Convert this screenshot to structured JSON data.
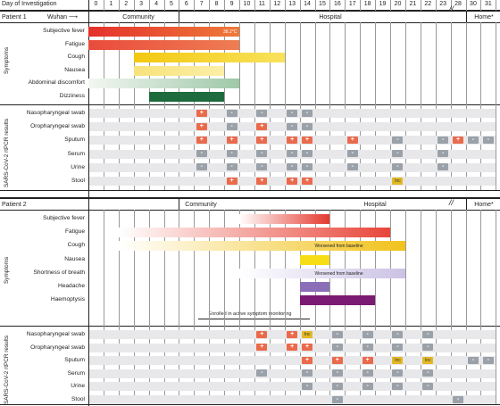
{
  "header": {
    "title": "Day of Investigation",
    "days": [
      "0",
      "1",
      "2",
      "3",
      "4",
      "5",
      "6",
      "7",
      "8",
      "9",
      "10",
      "11",
      "12",
      "13",
      "14",
      "15",
      "16",
      "17",
      "18",
      "19",
      "20",
      "21",
      "22",
      "23",
      "28",
      "30",
      "31"
    ]
  },
  "patient1": {
    "label": "Patient 1",
    "location_origin": "Wuhan",
    "phases": {
      "community": "Community",
      "hospital": "Hospital",
      "home": "Home*"
    },
    "symptoms_label": "Symptoms",
    "symptoms": [
      {
        "name": "Subjective fever",
        "start": 0,
        "end": 10,
        "gradient": [
          "#e4312b",
          "#ee7a3a"
        ],
        "annotation": "38.2°C"
      },
      {
        "name": "Fatigue",
        "start": 0,
        "end": 10,
        "gradient": [
          "#e94b3c",
          "#ef7d52"
        ]
      },
      {
        "name": "Cough",
        "start": 3,
        "end": 13,
        "gradient": [
          "#f3c810",
          "#f8e25c"
        ]
      },
      {
        "name": "Nausea",
        "start": 3,
        "end": 9,
        "gradient": [
          "#f7e27a",
          "#fbefa8"
        ]
      },
      {
        "name": "Abdominal discomfort",
        "start": 0,
        "end": 10,
        "gradient": [
          "#f2f7f2",
          "#9fc8a8"
        ]
      },
      {
        "name": "Dizziness",
        "start": 4,
        "end": 9,
        "gradient": [
          "#1e6b3d",
          "#1e6b3d"
        ]
      }
    ],
    "results_label": "SARS-CoV-2 rtPCR results",
    "tests": [
      {
        "name": "Nasopharyngeal swab",
        "results": [
          [
            7,
            "+"
          ],
          [
            9,
            "-"
          ],
          [
            11,
            "-"
          ],
          [
            13,
            "-"
          ],
          [
            14,
            "-"
          ]
        ]
      },
      {
        "name": "Oropharyngeal swab",
        "results": [
          [
            7,
            "+"
          ],
          [
            9,
            "-"
          ],
          [
            11,
            "+"
          ],
          [
            13,
            "-"
          ],
          [
            14,
            "-"
          ]
        ]
      },
      {
        "name": "Sputum",
        "results": [
          [
            7,
            "+"
          ],
          [
            9,
            "+"
          ],
          [
            11,
            "+"
          ],
          [
            13,
            "+"
          ],
          [
            14,
            "+"
          ],
          [
            17,
            "+"
          ],
          [
            20,
            "-"
          ],
          [
            23,
            "-"
          ],
          [
            24,
            "+"
          ],
          [
            25,
            "-"
          ],
          [
            26,
            "-"
          ]
        ]
      },
      {
        "name": "Serum",
        "results": [
          [
            7,
            "-"
          ],
          [
            9,
            "-"
          ],
          [
            11,
            "-"
          ],
          [
            13,
            "-"
          ],
          [
            14,
            "-"
          ],
          [
            17,
            "-"
          ],
          [
            20,
            "-"
          ],
          [
            23,
            "-"
          ]
        ]
      },
      {
        "name": "Urine",
        "results": [
          [
            7,
            "-"
          ],
          [
            9,
            "-"
          ],
          [
            11,
            "-"
          ],
          [
            13,
            "-"
          ],
          [
            14,
            "-"
          ],
          [
            17,
            "-"
          ],
          [
            20,
            "-"
          ],
          [
            23,
            "-"
          ]
        ]
      },
      {
        "name": "Stool",
        "results": [
          [
            9,
            "+"
          ],
          [
            11,
            "+"
          ],
          [
            13,
            "+"
          ],
          [
            14,
            "+"
          ],
          [
            20,
            "inc"
          ]
        ]
      }
    ]
  },
  "patient2": {
    "label": "Patient 2",
    "phases": {
      "community": "Community",
      "hospital": "Hospital",
      "home": "Home*"
    },
    "symptoms_label": "Symptoms",
    "symptoms": [
      {
        "name": "Subjective fever",
        "start": 10,
        "end": 16,
        "gradient": [
          "#ffffff",
          "#e43a2e"
        ]
      },
      {
        "name": "Fatigue",
        "start": 2,
        "end": 20,
        "gradient": [
          "#ffffff",
          "#e8463a"
        ]
      },
      {
        "name": "Cough",
        "start": 2,
        "end": 21,
        "gradient": [
          "#ffffff",
          "#f1c21a"
        ],
        "annotation": "Worsened from baseline",
        "annotation_day": 15
      },
      {
        "name": "Nausea",
        "start": 14,
        "end": 16,
        "gradient": [
          "#f6dd16",
          "#f6dd16"
        ]
      },
      {
        "name": "Shortness of breath",
        "start": 10,
        "end": 21,
        "gradient": [
          "#ffffff",
          "#cbc2e4"
        ],
        "annotation": "Worsened from baseline",
        "annotation_day": 15
      },
      {
        "name": "Headache",
        "start": 14,
        "end": 16,
        "gradient": [
          "#8a6fb8",
          "#8a6fb8"
        ]
      },
      {
        "name": "Haemoptysis",
        "start": 14,
        "end": 19,
        "gradient": [
          "#7b1a72",
          "#7b1a72"
        ]
      }
    ],
    "monitoring_note": "Enrolled in active symptom monitoring",
    "results_label": "SARS-CoV-2 rtPCR results",
    "tests": [
      {
        "name": "Nasopharyngeal swab",
        "results": [
          [
            11,
            "+"
          ],
          [
            13,
            "+"
          ],
          [
            14,
            "inc"
          ],
          [
            16,
            "-"
          ],
          [
            18,
            "-"
          ],
          [
            20,
            "-"
          ],
          [
            22,
            "-"
          ]
        ]
      },
      {
        "name": "Oropharyngeal swab",
        "results": [
          [
            11,
            "+"
          ],
          [
            13,
            "+"
          ],
          [
            14,
            "+"
          ],
          [
            16,
            "-"
          ],
          [
            18,
            "-"
          ],
          [
            20,
            "-"
          ],
          [
            22,
            "-"
          ]
        ]
      },
      {
        "name": "Sputum",
        "results": [
          [
            14,
            "+"
          ],
          [
            16,
            "+"
          ],
          [
            18,
            "+"
          ],
          [
            20,
            "inc"
          ],
          [
            22,
            "inc"
          ],
          [
            25,
            "-"
          ],
          [
            26,
            "-"
          ]
        ]
      },
      {
        "name": "Serum",
        "results": [
          [
            11,
            "-"
          ],
          [
            14,
            "-"
          ],
          [
            16,
            "-"
          ],
          [
            18,
            "-"
          ],
          [
            20,
            "-"
          ],
          [
            22,
            "-"
          ]
        ]
      },
      {
        "name": "Urine",
        "results": [
          [
            14,
            "-"
          ],
          [
            16,
            "-"
          ],
          [
            18,
            "-"
          ],
          [
            20,
            "-"
          ],
          [
            22,
            "-"
          ]
        ]
      },
      {
        "name": "Stool",
        "results": [
          [
            16,
            "-"
          ],
          [
            24,
            "-"
          ]
        ]
      }
    ]
  },
  "colors": {
    "positive": "#ea6a4c",
    "negative": "#9aa1a9",
    "inconclusive": "#e2b925",
    "shade": "#e8e8ea"
  },
  "result_labels": {
    "+": "+",
    "-": "-",
    "inc": "Inc"
  }
}
